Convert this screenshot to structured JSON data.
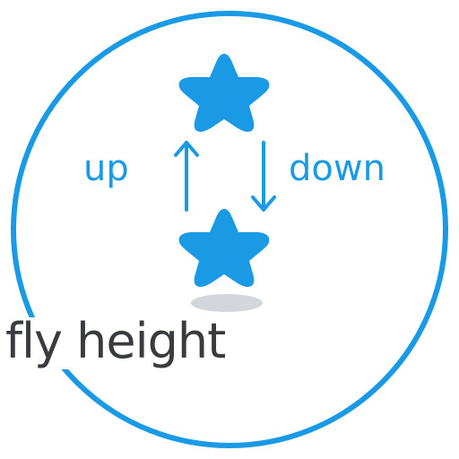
{
  "labels": {
    "up": "up",
    "down": "down",
    "title": "fly height"
  },
  "colors": {
    "accent": "#1a9ae4",
    "text_dark": "#3a3b3e",
    "shadow": "#d3d6db",
    "background": "#ffffff"
  },
  "icons": {
    "upper_star": "star-icon",
    "lower_star": "star-icon",
    "up_arrow": "arrow-up-icon",
    "down_arrow": "arrow-down-icon",
    "shadow": "ground-shadow-icon"
  }
}
